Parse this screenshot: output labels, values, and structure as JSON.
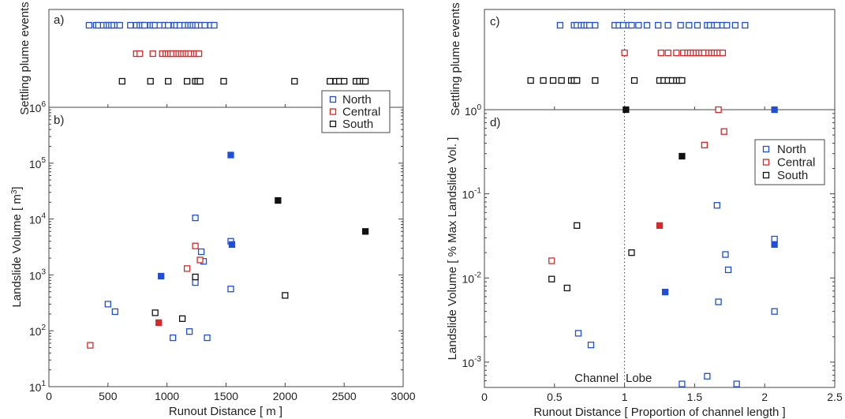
{
  "colors": {
    "North": "#1f4fd6",
    "Central": "#d42a2a",
    "South": "#111111"
  },
  "chart_data": [
    {
      "panel": "a)",
      "type": "scatter",
      "ylabel": "Settling plume events",
      "x_range": [
        0,
        3000
      ],
      "series": [
        {
          "name": "North",
          "x": [
            340,
            400,
            420,
            460,
            490,
            510,
            530,
            550,
            580,
            600,
            690,
            740,
            770,
            790,
            810,
            860,
            880,
            900,
            940,
            980,
            1010,
            1060,
            1080,
            1110,
            1150,
            1180,
            1200,
            1220,
            1240,
            1260,
            1290,
            1320,
            1370,
            1400
          ]
        },
        {
          "name": "Central",
          "x": [
            740,
            770,
            880,
            960,
            990,
            1010,
            1030,
            1050,
            1080,
            1100,
            1120,
            1140,
            1160,
            1180,
            1200,
            1230,
            1250,
            1270
          ]
        },
        {
          "name": "South",
          "x": [
            620,
            860,
            1010,
            1170,
            1240,
            1260,
            1280,
            1480,
            2080,
            2380,
            2430,
            2460,
            2500,
            2600,
            2630,
            2660,
            2680
          ]
        }
      ]
    },
    {
      "panel": "b)",
      "type": "scatter",
      "xlabel": "Runout Distance [ m ]",
      "ylabel": "Landslide Volume [ m",
      "ylabel_unit_exp": "3",
      "ylabel_end": "]",
      "x_range": [
        0,
        3000
      ],
      "y_range": [
        10,
        1000000
      ],
      "y_scale": "log",
      "x_ticks": [
        "0",
        "500",
        "1000",
        "1500",
        "2000",
        "2500",
        "3000"
      ],
      "y_tick_bases": [
        "10",
        "10",
        "10",
        "10",
        "10",
        "10"
      ],
      "y_tick_exps": [
        "1",
        "2",
        "3",
        "4",
        "5",
        "6"
      ],
      "legend": {
        "position": "top-right",
        "entries": [
          "North",
          "Central",
          "South"
        ]
      },
      "series": [
        {
          "name": "North",
          "points": [
            {
              "x": 500,
              "y": 300,
              "filled": false
            },
            {
              "x": 560,
              "y": 220,
              "filled": false
            },
            {
              "x": 950,
              "y": 950,
              "filled": true
            },
            {
              "x": 1050,
              "y": 75,
              "filled": false
            },
            {
              "x": 1190,
              "y": 97,
              "filled": false
            },
            {
              "x": 1240,
              "y": 10500,
              "filled": false
            },
            {
              "x": 1240,
              "y": 730,
              "filled": false
            },
            {
              "x": 1290,
              "y": 2600,
              "filled": false
            },
            {
              "x": 1310,
              "y": 1750,
              "filled": false
            },
            {
              "x": 1340,
              "y": 75,
              "filled": false
            },
            {
              "x": 1540,
              "y": 4000,
              "filled": false
            },
            {
              "x": 1550,
              "y": 3500,
              "filled": true
            },
            {
              "x": 1540,
              "y": 560,
              "filled": false
            },
            {
              "x": 1540,
              "y": 140000,
              "filled": true
            }
          ]
        },
        {
          "name": "Central",
          "points": [
            {
              "x": 350,
              "y": 55,
              "filled": false
            },
            {
              "x": 930,
              "y": 140,
              "filled": true
            },
            {
              "x": 1170,
              "y": 1300,
              "filled": false
            },
            {
              "x": 1240,
              "y": 3300,
              "filled": false
            },
            {
              "x": 1280,
              "y": 1850,
              "filled": false
            }
          ]
        },
        {
          "name": "South",
          "points": [
            {
              "x": 900,
              "y": 210,
              "filled": false
            },
            {
              "x": 1130,
              "y": 165,
              "filled": false
            },
            {
              "x": 1240,
              "y": 920,
              "filled": false
            },
            {
              "x": 1940,
              "y": 21500,
              "filled": true
            },
            {
              "x": 2000,
              "y": 430,
              "filled": false
            },
            {
              "x": 2680,
              "y": 6000,
              "filled": true
            }
          ]
        }
      ]
    },
    {
      "panel": "c)",
      "type": "scatter",
      "ylabel": "Settling plume events",
      "x_range": [
        0,
        2.5
      ],
      "series": [
        {
          "name": "North",
          "x": [
            0.54,
            0.64,
            0.66,
            0.69,
            0.71,
            0.73,
            0.75,
            0.79,
            0.93,
            0.96,
            0.99,
            1.03,
            1.05,
            1.1,
            1.16,
            1.24,
            1.31,
            1.4,
            1.46,
            1.52,
            1.59,
            1.61,
            1.64,
            1.66,
            1.7,
            1.73,
            1.79,
            1.86
          ]
        },
        {
          "name": "Central",
          "x": [
            1.0,
            1.26,
            1.31,
            1.37,
            1.42,
            1.45,
            1.47,
            1.49,
            1.51,
            1.53,
            1.55,
            1.57,
            1.6,
            1.62,
            1.64,
            1.66,
            1.68,
            1.7
          ]
        },
        {
          "name": "South",
          "x": [
            0.33,
            0.42,
            0.49,
            0.55,
            0.62,
            0.64,
            0.66,
            0.79,
            1.07,
            1.25,
            1.28,
            1.31,
            1.34,
            1.37,
            1.39,
            1.41
          ]
        }
      ]
    },
    {
      "panel": "d)",
      "type": "scatter",
      "xlabel": "Runout Distance [ Proportion of channel length ]",
      "ylabel": "Landslide Volume [ % Max Landslide Vol. ]",
      "x_range": [
        0,
        2.5
      ],
      "y_range": [
        0.0005,
        1
      ],
      "y_scale": "log",
      "x_ticks": [
        "0",
        "0.5",
        "1",
        "1.5",
        "2",
        "2.5"
      ],
      "y_tick_bases": [
        "10",
        "10",
        "10"
      ],
      "y_tick_exps": [
        "-3",
        "-2",
        "-1"
      ],
      "y_top_tick": "10",
      "y_top_tick_exp": "0",
      "vline_x": 1,
      "annotations": {
        "left": "Channel",
        "right": "Lobe"
      },
      "legend": {
        "position": "top-right",
        "entries": [
          "North",
          "Central",
          "South"
        ]
      },
      "series": [
        {
          "name": "North",
          "points": [
            {
              "x": 2.07,
              "y": 1.0,
              "filled": true
            },
            {
              "x": 1.66,
              "y": 0.073,
              "filled": false
            },
            {
              "x": 2.07,
              "y": 0.029,
              "filled": false
            },
            {
              "x": 2.07,
              "y": 0.025,
              "filled": true
            },
            {
              "x": 1.72,
              "y": 0.019,
              "filled": false
            },
            {
              "x": 1.74,
              "y": 0.0125,
              "filled": false
            },
            {
              "x": 1.29,
              "y": 0.0068,
              "filled": true
            },
            {
              "x": 1.67,
              "y": 0.0052,
              "filled": false
            },
            {
              "x": 2.07,
              "y": 0.004,
              "filled": false
            },
            {
              "x": 0.67,
              "y": 0.0022,
              "filled": false
            },
            {
              "x": 0.76,
              "y": 0.0016,
              "filled": false
            },
            {
              "x": 1.59,
              "y": 0.00068,
              "filled": false
            },
            {
              "x": 1.41,
              "y": 0.00055,
              "filled": false
            },
            {
              "x": 1.8,
              "y": 0.00055,
              "filled": false
            }
          ]
        },
        {
          "name": "Central",
          "points": [
            {
              "x": 1.67,
              "y": 1.0,
              "filled": false
            },
            {
              "x": 1.71,
              "y": 0.55,
              "filled": false
            },
            {
              "x": 1.57,
              "y": 0.38,
              "filled": false
            },
            {
              "x": 1.25,
              "y": 0.042,
              "filled": true
            },
            {
              "x": 0.48,
              "y": 0.016,
              "filled": false
            }
          ]
        },
        {
          "name": "South",
          "points": [
            {
              "x": 1.01,
              "y": 1.0,
              "filled": true
            },
            {
              "x": 1.41,
              "y": 0.28,
              "filled": true
            },
            {
              "x": 0.66,
              "y": 0.042,
              "filled": false
            },
            {
              "x": 1.05,
              "y": 0.02,
              "filled": false
            },
            {
              "x": 0.48,
              "y": 0.0097,
              "filled": false
            },
            {
              "x": 0.59,
              "y": 0.0076,
              "filled": false
            }
          ]
        }
      ]
    }
  ]
}
